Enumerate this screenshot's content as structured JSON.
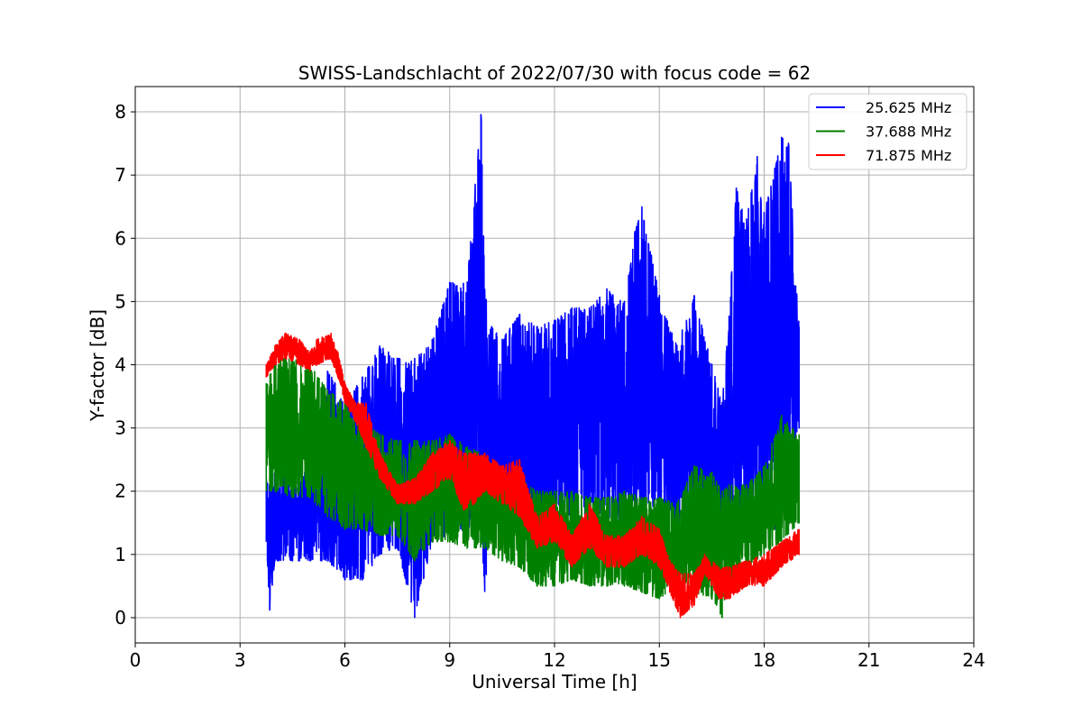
{
  "chart_data": {
    "type": "line",
    "title": "SWISS-Landschlacht of 2022/07/30 with focus code = 62",
    "xlabel": "Universal Time [h]",
    "ylabel": "Y-factor [dB]",
    "xlim": [
      0,
      24
    ],
    "ylim": [
      -0.4,
      8.4
    ],
    "xticks": [
      0,
      3,
      6,
      9,
      12,
      15,
      18,
      21,
      24
    ],
    "yticks": [
      0,
      1,
      2,
      3,
      4,
      5,
      6,
      7,
      8
    ],
    "grid": true,
    "legend_position": "top-right",
    "series": [
      {
        "name": "25.625 MHz",
        "color": "#0000ff",
        "x": [
          3.75,
          3.85,
          4.0,
          4.5,
          5.0,
          5.5,
          6.0,
          6.5,
          7.0,
          7.5,
          8.0,
          8.5,
          9.0,
          9.5,
          9.9,
          10.0,
          10.2,
          10.5,
          11.0,
          11.5,
          12.0,
          12.5,
          13.0,
          13.5,
          14.0,
          14.3,
          14.5,
          15.0,
          15.5,
          16.0,
          16.5,
          16.8,
          17.0,
          17.2,
          17.5,
          17.8,
          18.0,
          18.3,
          18.5,
          18.7,
          18.8,
          19.0
        ],
        "min": [
          1.2,
          0.1,
          0.9,
          0.9,
          0.9,
          0.9,
          0.6,
          0.6,
          1.0,
          1.1,
          0.0,
          1.2,
          1.3,
          1.4,
          1.5,
          0.4,
          1.6,
          1.6,
          1.6,
          1.5,
          1.6,
          1.6,
          1.6,
          1.6,
          1.5,
          1.6,
          1.6,
          1.7,
          1.5,
          1.5,
          1.4,
          0.9,
          1.2,
          1.2,
          1.3,
          1.3,
          1.4,
          1.4,
          1.8,
          2.3,
          2.6,
          3.0
        ],
        "max": [
          2.2,
          2.1,
          2.3,
          2.3,
          2.4,
          3.9,
          3.5,
          3.8,
          4.3,
          4.1,
          4.1,
          4.4,
          5.3,
          5.3,
          8.0,
          5.2,
          4.6,
          4.4,
          4.8,
          4.6,
          4.7,
          4.9,
          4.9,
          5.2,
          5.0,
          6.1,
          6.5,
          5.1,
          4.3,
          5.1,
          4.0,
          3.4,
          4.8,
          6.8,
          6.3,
          7.3,
          6.4,
          7.1,
          7.6,
          7.5,
          6.5,
          4.6
        ]
      },
      {
        "name": "37.688 MHz",
        "color": "#008000",
        "x": [
          3.75,
          4.0,
          4.5,
          5.0,
          5.5,
          6.0,
          6.5,
          7.0,
          7.5,
          8.0,
          8.5,
          9.0,
          9.5,
          10.0,
          10.5,
          11.0,
          11.5,
          12.0,
          12.5,
          13.0,
          13.5,
          14.0,
          14.5,
          15.0,
          15.5,
          16.0,
          16.5,
          16.8,
          17.0,
          17.5,
          18.0,
          18.5,
          19.0
        ],
        "min": [
          2.0,
          2.0,
          1.9,
          1.9,
          1.6,
          1.4,
          1.4,
          1.3,
          1.3,
          0.9,
          1.2,
          1.2,
          1.1,
          1.1,
          0.9,
          0.8,
          0.5,
          0.5,
          0.6,
          0.5,
          0.5,
          0.5,
          0.4,
          0.3,
          0.5,
          0.4,
          0.3,
          0.0,
          0.5,
          0.8,
          1.0,
          1.2,
          1.5
        ],
        "max": [
          3.7,
          4.1,
          4.1,
          4.0,
          3.6,
          3.4,
          3.1,
          2.9,
          2.8,
          2.8,
          2.8,
          2.9,
          2.7,
          2.6,
          2.3,
          2.2,
          2.0,
          2.0,
          2.0,
          1.9,
          1.9,
          2.0,
          1.9,
          1.9,
          1.8,
          2.4,
          2.3,
          2.0,
          2.1,
          2.1,
          2.4,
          3.2,
          2.9
        ]
      },
      {
        "name": "71.875 MHz",
        "color": "#ff0000",
        "x": [
          3.75,
          4.0,
          4.3,
          4.7,
          5.0,
          5.2,
          5.6,
          5.8,
          6.0,
          6.3,
          6.6,
          7.0,
          7.5,
          8.0,
          8.5,
          9.0,
          9.4,
          9.7,
          10.0,
          10.5,
          11.0,
          11.5,
          12.0,
          12.5,
          13.0,
          13.5,
          14.0,
          14.5,
          15.0,
          15.3,
          15.6,
          16.0,
          16.3,
          16.7,
          17.0,
          17.5,
          18.0,
          18.5,
          19.0
        ],
        "min": [
          3.8,
          4.0,
          4.1,
          4.0,
          3.9,
          4.0,
          4.1,
          3.8,
          3.4,
          3.1,
          2.7,
          2.2,
          1.8,
          1.8,
          2.0,
          2.2,
          1.7,
          1.8,
          2.0,
          1.8,
          1.6,
          1.1,
          1.2,
          0.8,
          1.1,
          0.8,
          0.8,
          1.0,
          0.8,
          0.4,
          0.0,
          0.2,
          0.7,
          0.3,
          0.3,
          0.5,
          0.5,
          0.8,
          1.0
        ],
        "max": [
          4.0,
          4.3,
          4.5,
          4.4,
          4.2,
          4.4,
          4.5,
          4.2,
          3.7,
          3.4,
          3.4,
          2.6,
          2.1,
          2.2,
          2.6,
          2.8,
          2.6,
          2.6,
          2.6,
          2.4,
          2.5,
          1.6,
          1.8,
          1.3,
          1.8,
          1.3,
          1.3,
          1.6,
          1.4,
          0.9,
          0.7,
          0.7,
          1.0,
          0.8,
          0.8,
          0.9,
          1.0,
          1.2,
          1.4
        ]
      }
    ]
  }
}
